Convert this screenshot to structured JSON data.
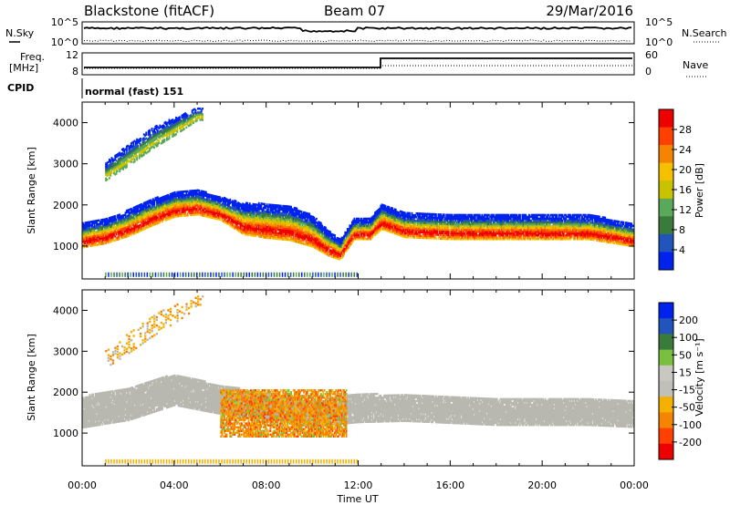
{
  "header": {
    "station": "Blackstone (fitACF)",
    "beam": "Beam 07",
    "date": "29/Mar/2016"
  },
  "panels": {
    "nsky_label": "N.Sky",
    "nsearch_label": "N.Search",
    "nsky_ticks": [
      "10^5",
      "10^0"
    ],
    "nsearch_ticks": [
      "10^5",
      "10^0"
    ],
    "freq_label_1": "Freq.",
    "freq_label_2": "[MHz]",
    "freq_ticks": [
      "12",
      "8"
    ],
    "nave_label": "Nave",
    "nave_ticks": [
      "60",
      "0"
    ],
    "cpid_label": "CPID",
    "cpid_value": "normal (fast) 151"
  },
  "colors": {
    "power_scale": [
      "#0022ee",
      "#2255bb",
      "#3a7a3a",
      "#5aa85a",
      "#c8c200",
      "#f5c000",
      "#f58500",
      "#ff4000",
      "#ee0000"
    ],
    "velocity_scale": [
      "#ee0000",
      "#ff4000",
      "#f58500",
      "#f5b000",
      "#c0c0b8",
      "#c8c8c0",
      "#7ac040",
      "#3a7a3a",
      "#2255bb",
      "#0022ee"
    ],
    "ground_scatter": "#b8b8b0"
  },
  "chart_data": [
    {
      "type": "heatmap",
      "title": "",
      "xlabel": "Time UT",
      "ylabel": "Slant Range [km]",
      "x_range_hours": [
        0,
        24
      ],
      "ylim": [
        200,
        4500
      ],
      "x_ticks": [
        "00:00",
        "04:00",
        "08:00",
        "12:00",
        "16:00",
        "20:00",
        "00:00"
      ],
      "y_ticks": [
        "1000",
        "2000",
        "3000",
        "4000"
      ],
      "y_tick_values": [
        1000,
        2000,
        3000,
        4000
      ],
      "colorbar_label": "Power [dB]",
      "colorbar_ticks": [
        "4",
        "8",
        "12",
        "16",
        "20",
        "24",
        "28"
      ],
      "colorbar_tick_values": [
        4,
        8,
        12,
        16,
        20,
        24,
        28
      ],
      "colorbar_range": [
        0,
        32
      ],
      "bands": [
        {
          "name": "main-band",
          "t": [
            0,
            1,
            2,
            3,
            4,
            5,
            6,
            7,
            8,
            9,
            10,
            10.7,
            11.2,
            11.8,
            12.5,
            13,
            14,
            16,
            18,
            20,
            22,
            24
          ],
          "center": [
            1250,
            1350,
            1550,
            1800,
            2000,
            2050,
            1900,
            1650,
            1600,
            1550,
            1350,
            1050,
            900,
            1400,
            1400,
            1700,
            1500,
            1450,
            1450,
            1450,
            1450,
            1250
          ],
          "half_width": [
            300,
            300,
            320,
            320,
            300,
            300,
            280,
            380,
            420,
            420,
            380,
            300,
            250,
            250,
            250,
            300,
            300,
            300,
            300,
            300,
            300,
            280
          ],
          "t_start": 0,
          "t_end": 24
        },
        {
          "name": "upper-tongue",
          "t": [
            1,
            2,
            3,
            4,
            5
          ],
          "center": [
            2800,
            3200,
            3600,
            3900,
            4200
          ],
          "half_width": [
            220,
            260,
            260,
            220,
            150
          ],
          "t_start": 1,
          "t_end": 5.2
        }
      ]
    },
    {
      "type": "heatmap",
      "title": "",
      "xlabel": "Time UT",
      "ylabel": "Slant Range [km]",
      "x_range_hours": [
        0,
        24
      ],
      "ylim": [
        200,
        4500
      ],
      "x_ticks": [
        "00:00",
        "04:00",
        "08:00",
        "12:00",
        "16:00",
        "20:00",
        "00:00"
      ],
      "y_ticks": [
        "1000",
        "2000",
        "3000",
        "4000"
      ],
      "y_tick_values": [
        1000,
        2000,
        3000,
        4000
      ],
      "colorbar_label": "Velocity [m s⁻¹]",
      "colorbar_ticks": [
        "200",
        "100",
        "50",
        "15",
        "-15",
        "-50",
        "-100",
        "-200"
      ],
      "colorbar_range": [
        -250,
        250
      ],
      "ground_scatter_band": {
        "t": [
          0,
          2,
          4,
          6,
          8,
          10,
          12,
          14,
          16,
          18,
          20,
          22,
          24
        ],
        "center": [
          1500,
          1700,
          2050,
          1800,
          1650,
          1450,
          1600,
          1600,
          1550,
          1500,
          1500,
          1500,
          1450
        ],
        "half_width": [
          380,
          400,
          380,
          350,
          320,
          300,
          350,
          320,
          320,
          320,
          320,
          320,
          320
        ]
      },
      "velocity_patch": {
        "t_start": 6.0,
        "t_end": 11.5,
        "range_bottom": 900,
        "range_top": 2050,
        "velocity": -80
      }
    }
  ]
}
